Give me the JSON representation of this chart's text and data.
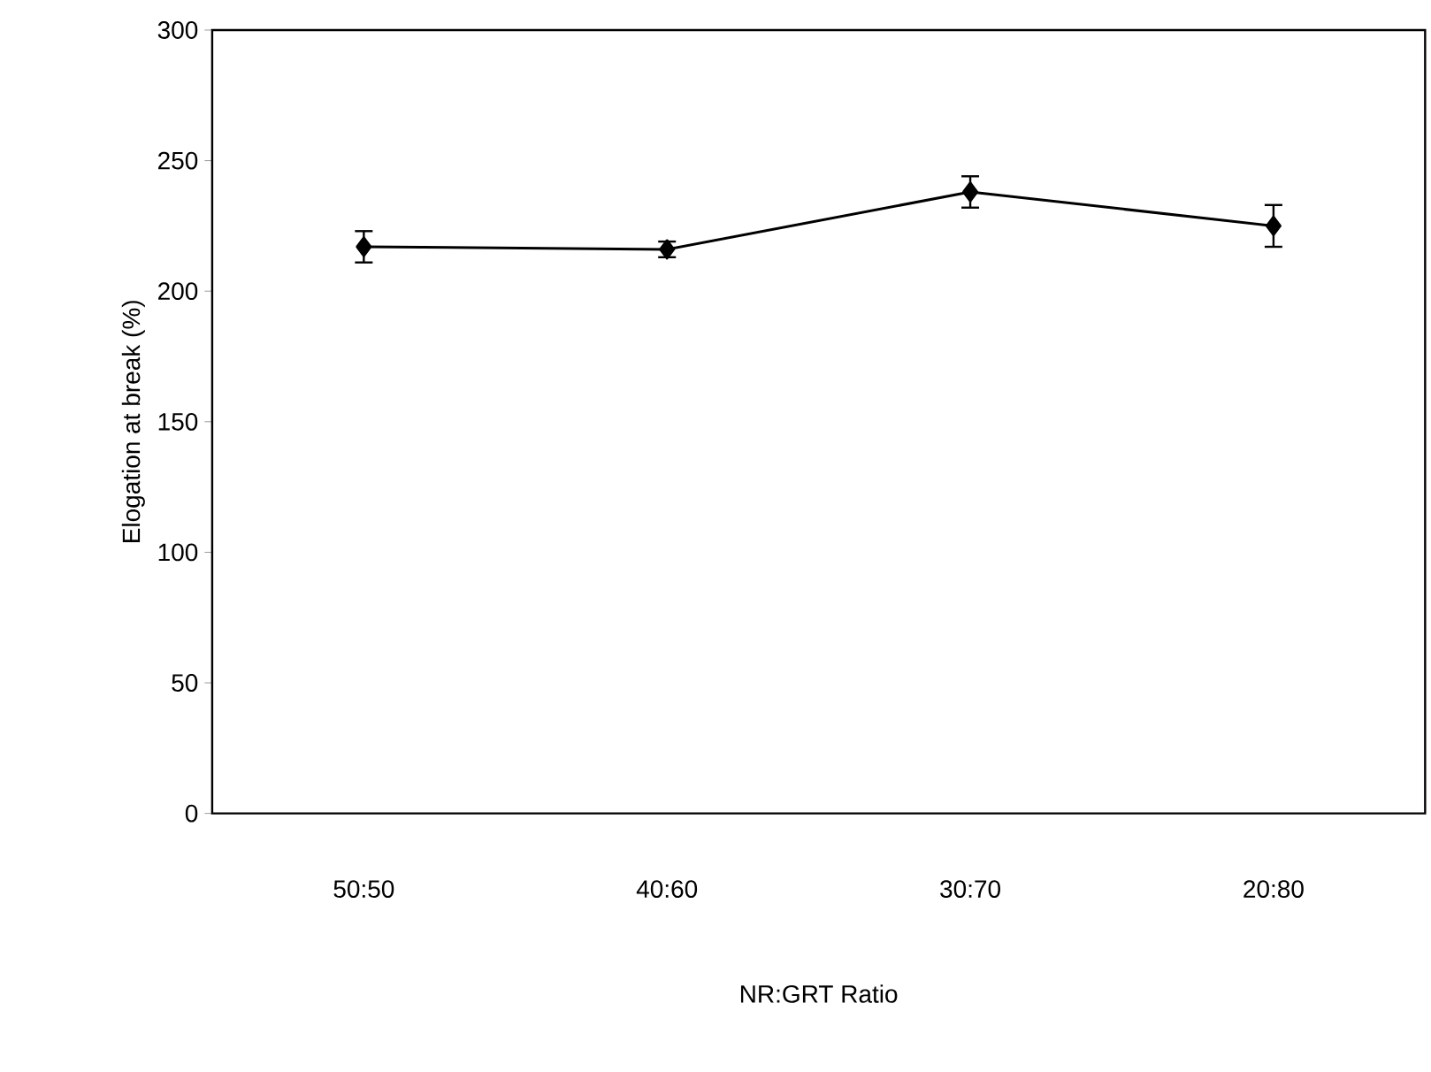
{
  "chart_data": {
    "type": "line",
    "xlabel": "NR:GRT Ratio",
    "ylabel": "Elogation at break (%)",
    "categories": [
      "50:50",
      "40:60",
      "30:70",
      "20:80"
    ],
    "values": [
      217,
      216,
      238,
      225
    ],
    "errors": [
      6,
      3,
      6,
      8
    ],
    "color": "#000000",
    "marker": "diamond",
    "line_style": "solid",
    "ylim": [
      0,
      300
    ],
    "yticks": [
      0,
      50,
      100,
      150,
      200,
      250,
      300
    ],
    "grid": false
  }
}
